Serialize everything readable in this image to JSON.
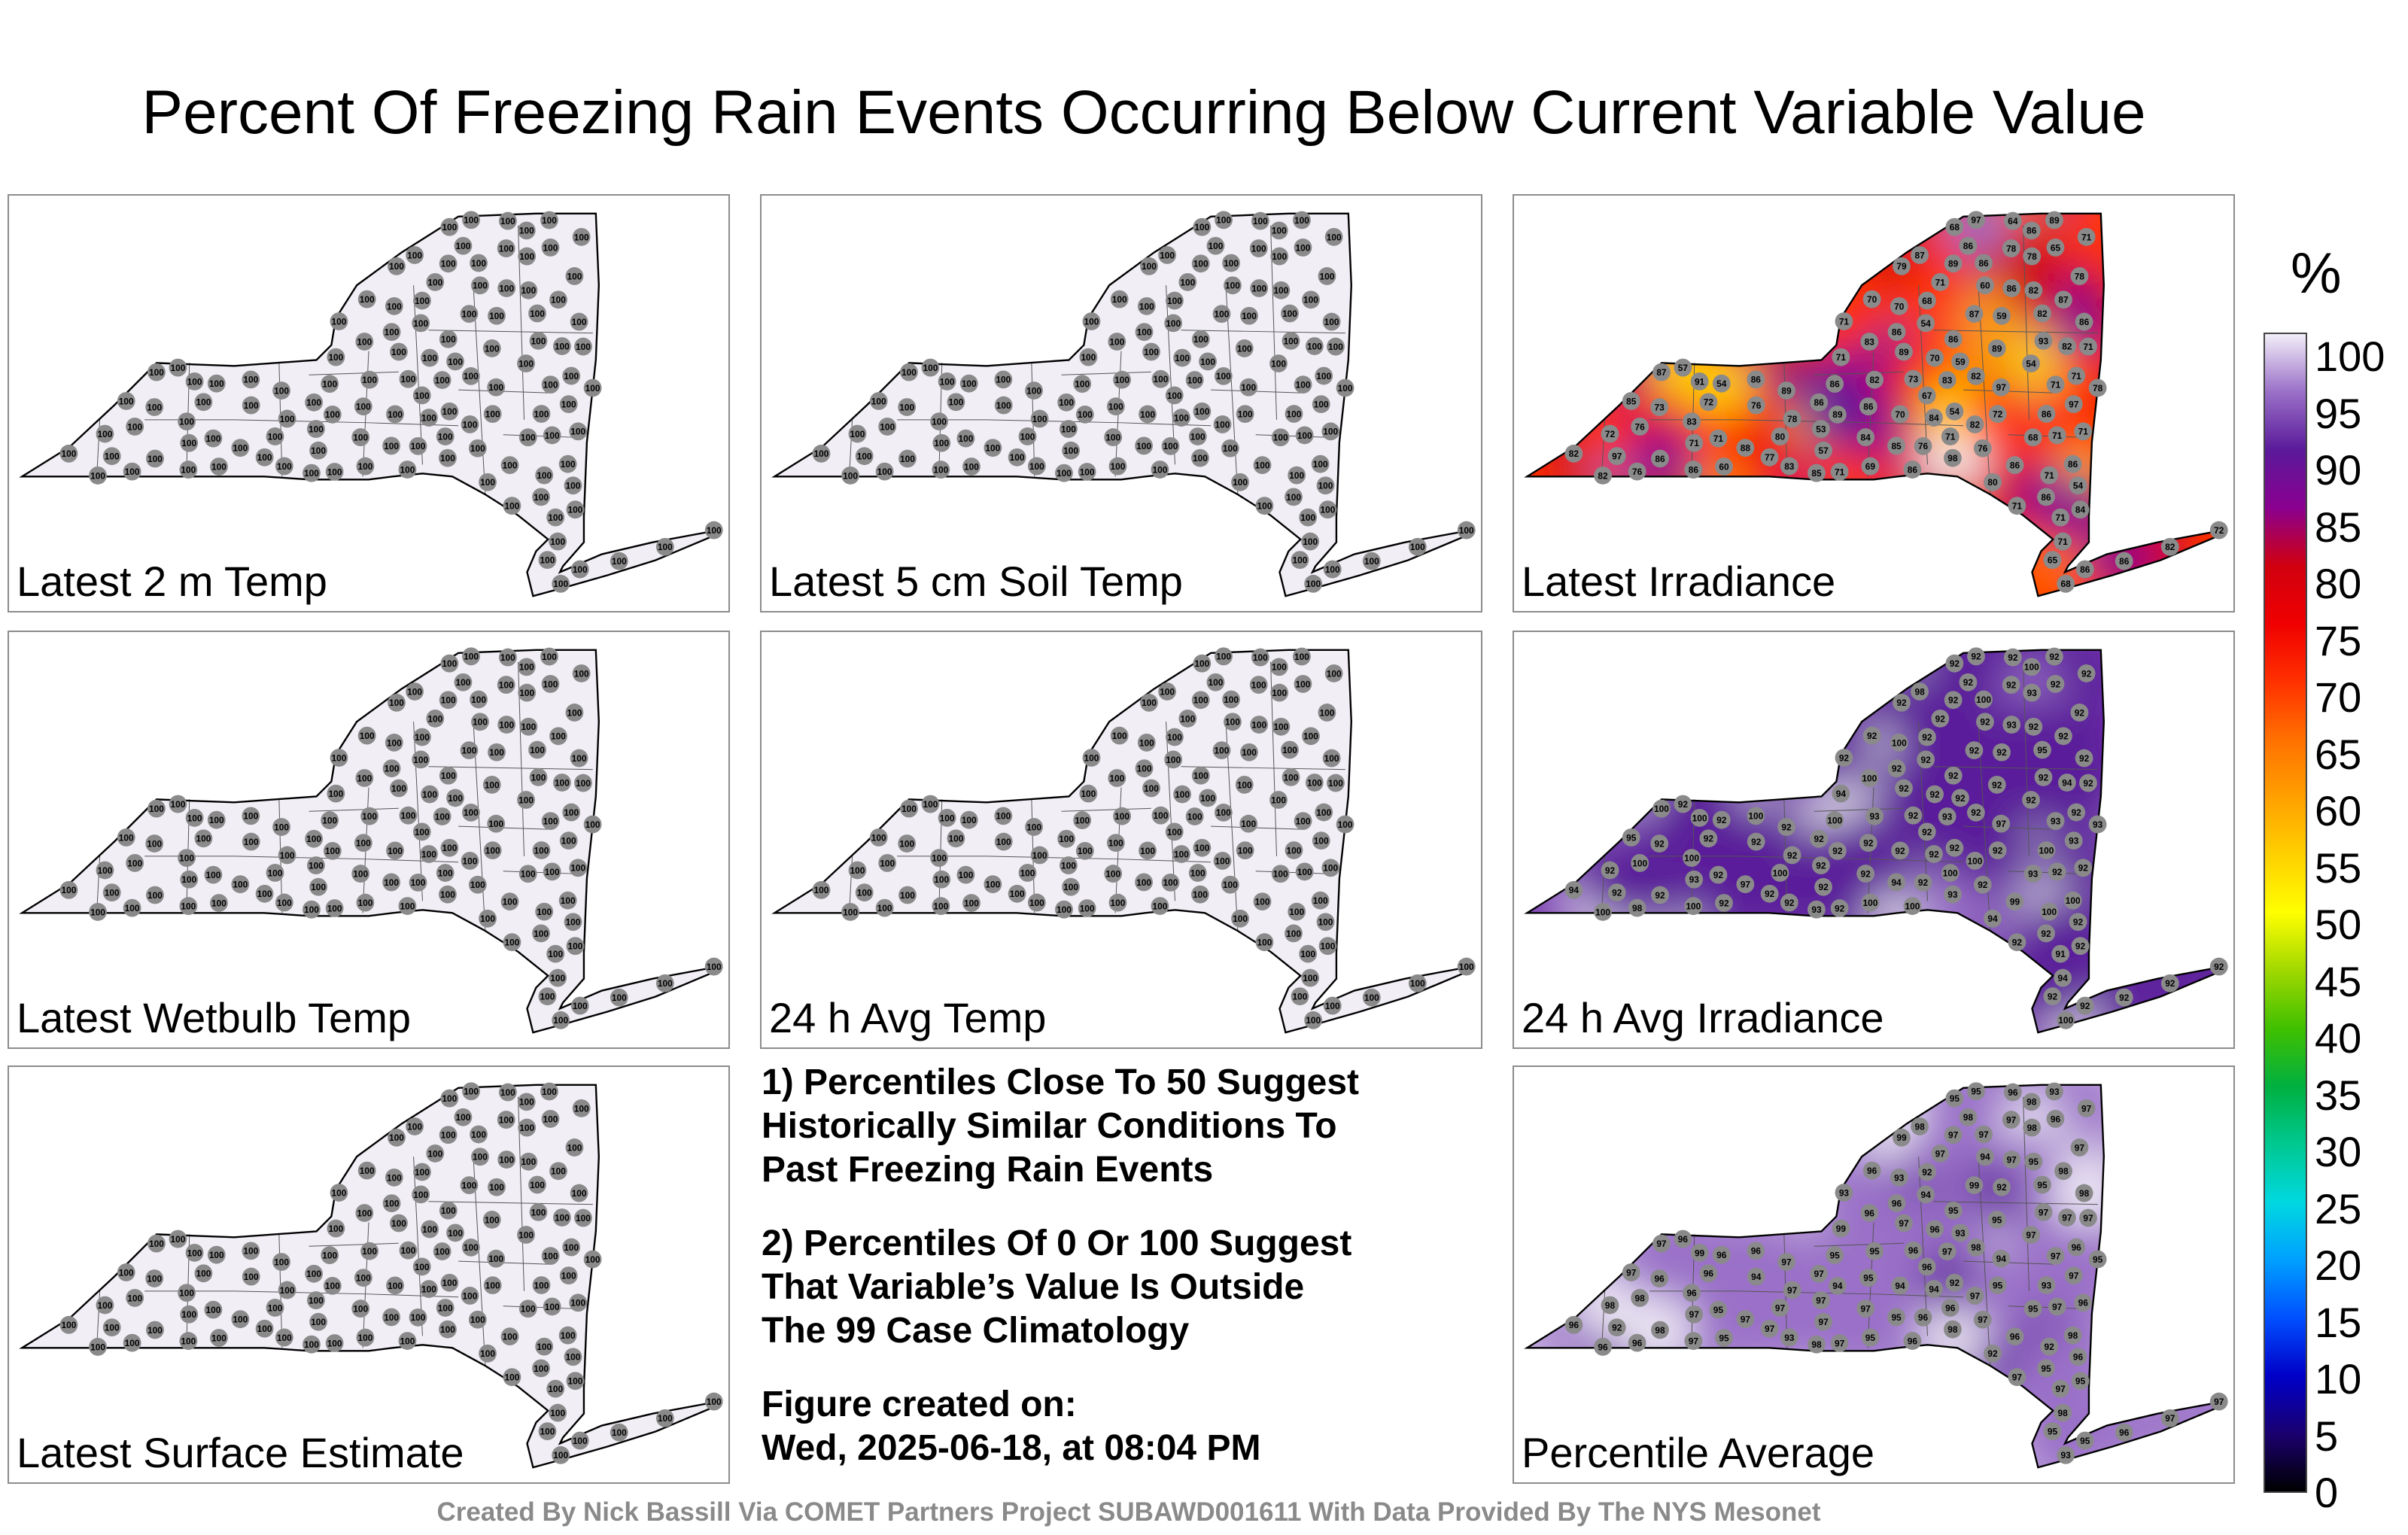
{
  "title": "Percent Of Freezing Rain Events Occurring Below Current Variable Value",
  "panels": [
    {
      "label": "Latest 2 m Temp",
      "mode": "flat",
      "fill": "#f1eef6",
      "values": [
        100,
        100,
        100,
        100,
        100,
        100,
        100,
        100,
        100,
        100,
        100,
        100,
        100,
        100,
        100,
        100,
        100,
        100,
        100,
        100,
        100,
        100,
        100,
        100,
        100,
        100,
        100,
        100,
        100,
        100,
        100,
        100,
        100,
        100,
        100,
        100,
        100,
        100,
        100,
        100,
        100,
        100,
        100,
        100,
        100,
        100,
        100,
        100,
        100,
        100,
        100,
        100,
        100,
        100,
        100,
        100,
        100,
        100,
        100,
        100,
        100,
        100,
        100,
        100,
        100,
        100,
        100,
        100,
        100,
        100,
        100,
        100,
        100,
        100,
        100,
        100,
        100,
        100,
        100,
        100,
        100,
        100,
        100,
        100,
        100,
        100,
        100,
        100,
        100,
        100,
        100,
        100,
        100,
        100,
        100,
        100,
        100,
        100,
        100,
        100,
        100,
        100,
        100,
        100,
        100,
        100,
        100,
        100,
        100,
        100,
        100,
        100,
        100,
        100,
        100,
        100,
        100,
        100,
        100,
        100,
        100,
        100,
        100
      ]
    },
    {
      "label": "Latest 5 cm Soil Temp",
      "mode": "flat",
      "fill": "#f1eef6",
      "values": [
        100,
        100,
        100,
        100,
        100,
        100,
        100,
        100,
        100,
        100,
        100,
        100,
        100,
        100,
        100,
        100,
        100,
        100,
        100,
        100,
        100,
        100,
        100,
        100,
        100,
        100,
        100,
        100,
        100,
        100,
        100,
        100,
        100,
        100,
        100,
        100,
        100,
        100,
        100,
        100,
        100,
        100,
        100,
        100,
        100,
        100,
        100,
        100,
        100,
        100,
        100,
        100,
        100,
        100,
        100,
        100,
        100,
        100,
        100,
        100,
        100,
        100,
        100,
        100,
        100,
        100,
        100,
        100,
        100,
        100,
        100,
        100,
        100,
        100,
        100,
        100,
        100,
        100,
        100,
        100,
        100,
        100,
        100,
        100,
        100,
        100,
        100,
        100,
        100,
        100,
        100,
        100,
        100,
        100,
        100,
        100,
        100,
        100,
        100,
        100,
        100,
        100,
        100,
        100,
        100,
        100,
        100,
        100,
        100,
        100,
        100,
        100,
        100,
        100,
        100,
        100,
        100,
        100,
        100,
        100,
        100,
        100,
        100
      ]
    },
    {
      "label": "Latest Irradiance",
      "mode": "field",
      "fill": "#ff3a00",
      "values": [
        87,
        91,
        86,
        86,
        76,
        87,
        86,
        83,
        82,
        71,
        86,
        85,
        86,
        82,
        71,
        82,
        82,
        80,
        86,
        85,
        71,
        93,
        87,
        83,
        78,
        97,
        86,
        97,
        86,
        89,
        76,
        86,
        70,
        68,
        86,
        86,
        85,
        88,
        82,
        72,
        70,
        78,
        89,
        86,
        71,
        71,
        86,
        78,
        71,
        86,
        71,
        76,
        80,
        76,
        71,
        68,
        71,
        83,
        82,
        70,
        97,
        60,
        54,
        65,
        54,
        60,
        71,
        72,
        82,
        73,
        71,
        78,
        89,
        54,
        53,
        57,
        65,
        86,
        89,
        82,
        87,
        86,
        84,
        71,
        59,
        86,
        89,
        71,
        76,
        64,
        69,
        86,
        71,
        78,
        98,
        79,
        54,
        83,
        84,
        77,
        84,
        57,
        71,
        72,
        59,
        68,
        67,
        68,
        86,
        86,
        73,
        89,
        70,
        71,
        54,
        97,
        71,
        72,
        82
      ]
    },
    {
      "label": "Latest Wetbulb Temp",
      "mode": "flat",
      "fill": "#f1eef6",
      "values": [
        100,
        100,
        100,
        100,
        100,
        100,
        100,
        100,
        100,
        100,
        100,
        100,
        100,
        100,
        100,
        100,
        100,
        100,
        100,
        100,
        100,
        100,
        100,
        100,
        100,
        100,
        100,
        100,
        100,
        100,
        100,
        100,
        100,
        100,
        100,
        100,
        100,
        100,
        100,
        100,
        100,
        100,
        100,
        100,
        100,
        100,
        100,
        100,
        100,
        100,
        100,
        100,
        100,
        100,
        100,
        100,
        100,
        100,
        100,
        100,
        100,
        100,
        100,
        100,
        100,
        100,
        100,
        100,
        100,
        100,
        100,
        100,
        100,
        100,
        100,
        100,
        100,
        100,
        100,
        100,
        100,
        100,
        100,
        100,
        100,
        100,
        100,
        100,
        100,
        100,
        100,
        100,
        100,
        100,
        100,
        100,
        100,
        100,
        100,
        100,
        100,
        100,
        100,
        100,
        100,
        100,
        100,
        100,
        100,
        100,
        100,
        100,
        100,
        100,
        100,
        100,
        100,
        100,
        100,
        100,
        100,
        100,
        100
      ]
    },
    {
      "label": "24 h Avg Temp",
      "mode": "flat",
      "fill": "#f1eef6",
      "values": [
        100,
        100,
        100,
        100,
        100,
        100,
        100,
        100,
        100,
        100,
        100,
        100,
        100,
        100,
        100,
        100,
        100,
        100,
        100,
        100,
        100,
        100,
        100,
        100,
        100,
        100,
        100,
        100,
        100,
        100,
        100,
        100,
        100,
        100,
        100,
        100,
        100,
        100,
        100,
        100,
        100,
        100,
        100,
        100,
        100,
        100,
        100,
        100,
        100,
        100,
        100,
        100,
        100,
        100,
        100,
        100,
        100,
        100,
        100,
        100,
        100,
        100,
        100,
        100,
        100,
        100,
        100,
        100,
        100,
        100,
        100,
        100,
        100,
        100,
        100,
        100,
        100,
        100,
        100,
        100,
        100,
        100,
        100,
        100,
        100,
        100,
        100,
        100,
        100,
        100,
        100,
        100,
        100,
        100,
        100,
        100,
        100,
        100,
        100,
        100,
        100,
        100,
        100,
        100,
        100,
        100,
        100,
        100,
        100,
        100,
        100,
        100,
        100,
        100,
        100,
        100,
        100,
        100,
        100,
        100,
        100,
        100,
        100
      ]
    },
    {
      "label": "24 h Avg Irradiance",
      "mode": "field",
      "fill": "#7a3fb0",
      "values": [
        98,
        100,
        100,
        100,
        100,
        100,
        100,
        100,
        94,
        93,
        100,
        93,
        100,
        93,
        94,
        100,
        95,
        100,
        99,
        95,
        93,
        92,
        92,
        93,
        92,
        97,
        92,
        93,
        100,
        92,
        98,
        92,
        92,
        93,
        92,
        100,
        94,
        97,
        94,
        92,
        92,
        93,
        92,
        93,
        92,
        92,
        92,
        92,
        92,
        92,
        94,
        92,
        94,
        92,
        92,
        100,
        100,
        100,
        100,
        100,
        92,
        92,
        92,
        92,
        92,
        92,
        92,
        92,
        92,
        92,
        91,
        92,
        92,
        92,
        92,
        92,
        92,
        92,
        92,
        92,
        92,
        92,
        92,
        92,
        92,
        92,
        92,
        92,
        92,
        92,
        100,
        100,
        100,
        93,
        93,
        92,
        92,
        92,
        92,
        92,
        92,
        92,
        92,
        92,
        92,
        92,
        92,
        92,
        92,
        92,
        92,
        92,
        92,
        92,
        92,
        92,
        92,
        92,
        92
      ]
    },
    {
      "label": "Latest Surface Estimate",
      "mode": "flat",
      "fill": "#f1eef6",
      "values": [
        100,
        100,
        100,
        100,
        100,
        100,
        100,
        100,
        100,
        100,
        100,
        100,
        100,
        100,
        100,
        100,
        100,
        100,
        100,
        100,
        100,
        100,
        100,
        100,
        100,
        100,
        100,
        100,
        100,
        100,
        100,
        100,
        100,
        100,
        100,
        100,
        100,
        100,
        100,
        100,
        100,
        100,
        100,
        100,
        100,
        100,
        100,
        100,
        100,
        100,
        100,
        100,
        100,
        100,
        100,
        100,
        100,
        100,
        100,
        100,
        100,
        100,
        100,
        100,
        100,
        100,
        100,
        100,
        100,
        100,
        100,
        100,
        100,
        100,
        100,
        100,
        100,
        100,
        100,
        100,
        100,
        100,
        100,
        100,
        100,
        100,
        100,
        100,
        100,
        100,
        100,
        100,
        100,
        100,
        100,
        100,
        100,
        100,
        100,
        100,
        100,
        100,
        100,
        100,
        100,
        100,
        100,
        100,
        100,
        100,
        100,
        100,
        100,
        100,
        100,
        100,
        100,
        100,
        100,
        100,
        100,
        100,
        100
      ]
    },
    {
      "label": "Percentile Average",
      "mode": "field",
      "fill": "#c9b3e0",
      "values": [
        98,
        99,
        98,
        97,
        98,
        97,
        96,
        96,
        97,
        97,
        97,
        98,
        96,
        95,
        98,
        97,
        95,
        97,
        96,
        97,
        97,
        97,
        99,
        97,
        97,
        94,
        97,
        97,
        98,
        97,
        96,
        96,
        96,
        95,
        95,
        93,
        95,
        97,
        96,
        96,
        94,
        95,
        95,
        97,
        96,
        97,
        95,
        97,
        96,
        98,
        99,
        96,
        92,
        94,
        97,
        93,
        92,
        96,
        96,
        93,
        92,
        94,
        96,
        95,
        97,
        95,
        95,
        98,
        98,
        96,
        97,
        97,
        93,
        94,
        97,
        97,
        96,
        98,
        97,
        97,
        98,
        95,
        94,
        97,
        92,
        96,
        97,
        97,
        97,
        96,
        95,
        95,
        96,
        98,
        98,
        99,
        96,
        93,
        95,
        97,
        97,
        96,
        97,
        97,
        93,
        92,
        96,
        95,
        98,
        95,
        96,
        94,
        96,
        97,
        92,
        95,
        93,
        95,
        95
      ]
    }
  ],
  "notes": [
    "1) Percentiles Close To 50 Suggest\nHistorically Similar Conditions To\nPast Freezing Rain Events",
    "2) Percentiles Of 0 Or 100 Suggest\nThat Variable’s Value Is Outside\nThe 99 Case Climatology",
    "Figure created on:\nWed, 2025-06-18, at 08:04 PM"
  ],
  "credit": "Created By Nick Bassill Via COMET Partners Project SUBAWD001611 With Data Provided By The NYS Mesonet",
  "colorbar": {
    "unit": "%",
    "ticks": [
      "0",
      "5",
      "10",
      "15",
      "20",
      "25",
      "30",
      "35",
      "40",
      "45",
      "50",
      "55",
      "60",
      "65",
      "70",
      "75",
      "80",
      "85",
      "90",
      "95",
      "100"
    ],
    "colors": [
      "#000000",
      "#1a0070",
      "#0000c8",
      "#0050ff",
      "#00a0ff",
      "#00d8e0",
      "#00c890",
      "#00b040",
      "#40c000",
      "#a0d800",
      "#ffff00",
      "#ffd000",
      "#ffa000",
      "#ff7000",
      "#ff3000",
      "#f00000",
      "#d00010",
      "#8a0090",
      "#5a1a9a",
      "#9a70c8",
      "#f2eef8"
    ]
  }
}
